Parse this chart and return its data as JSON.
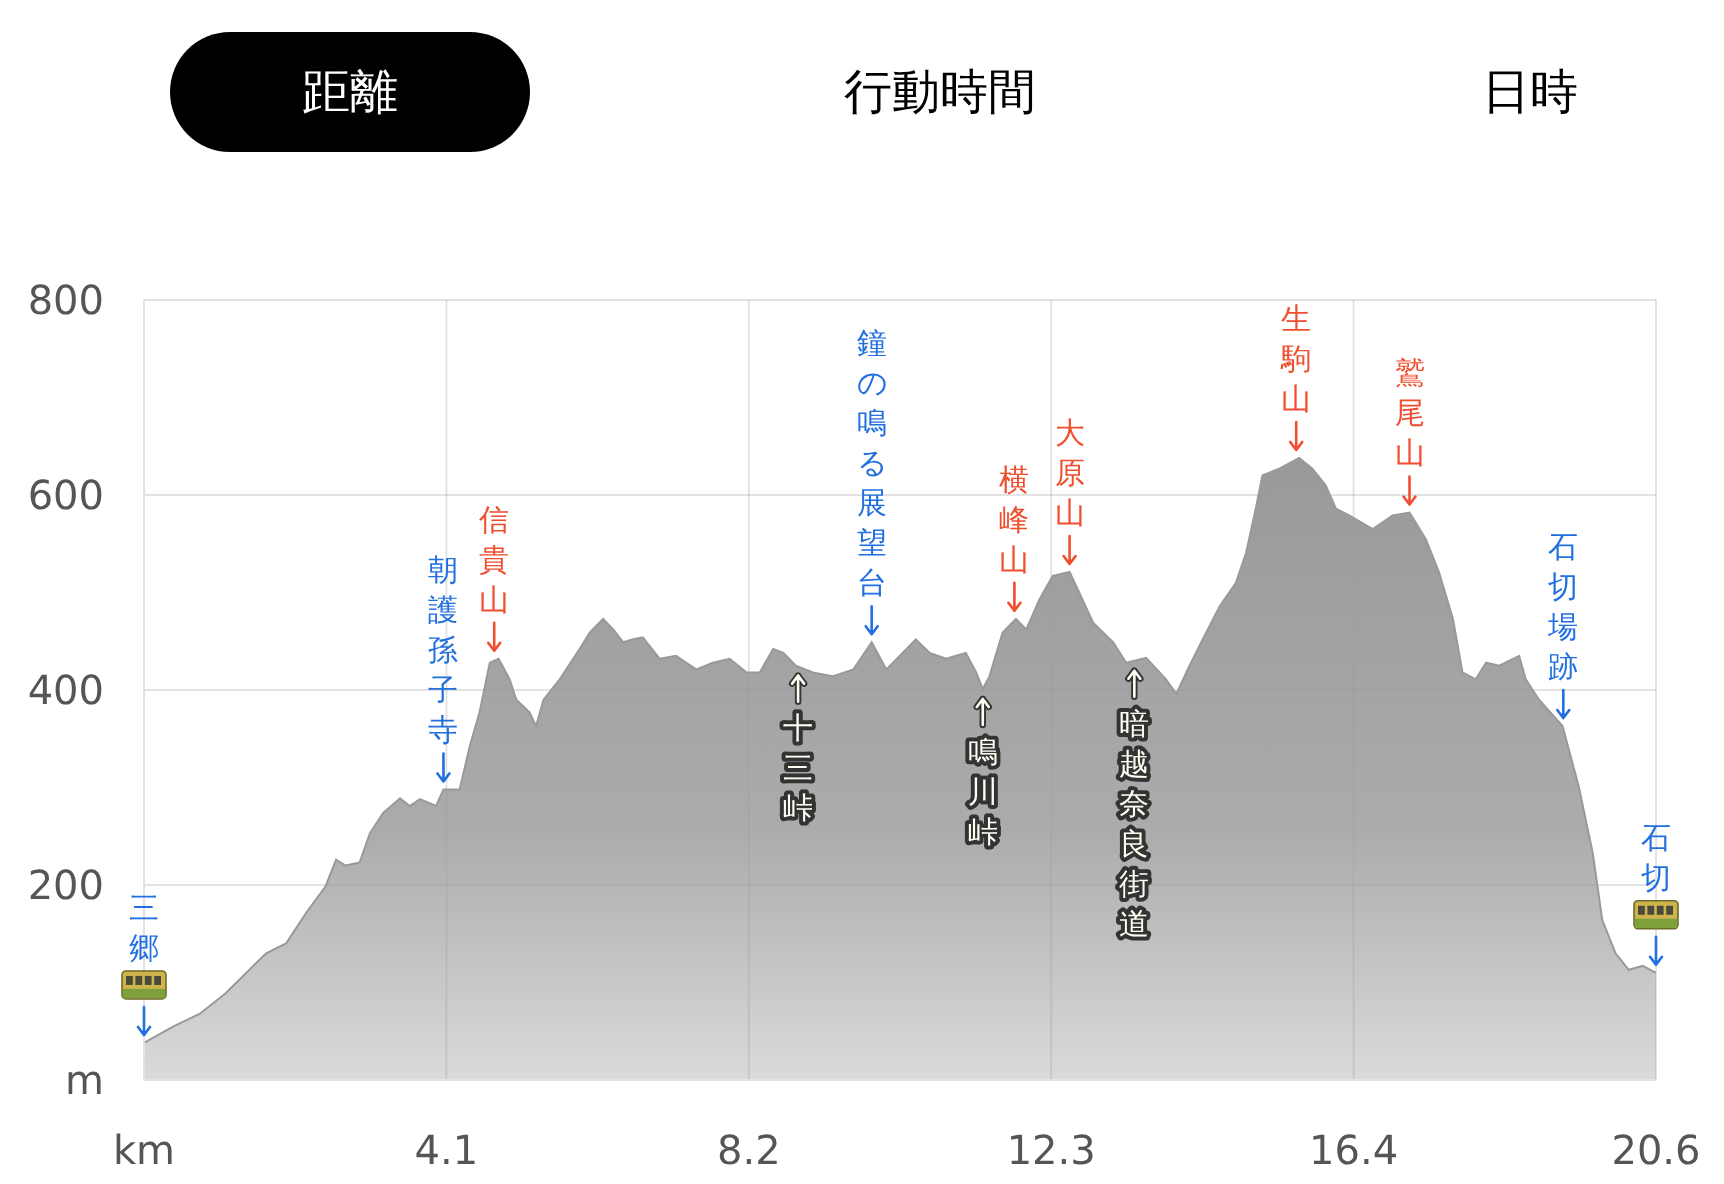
{
  "chart_data": [
    {
      "type": "other",
      "annotations": [
        "距離",
        "行動時間",
        "日時"
      ]
    },
    {
      "type": "area",
      "color": "#999999",
      "x": [
        0,
        0.4,
        0.76,
        1.11,
        1.35,
        1.66,
        1.93,
        2.2,
        2.47,
        2.61,
        2.74,
        2.93,
        3.07,
        3.25,
        3.48,
        3.61,
        3.75,
        3.97,
        4.07,
        4.29,
        4.43,
        4.56,
        4.7,
        4.82,
        4.97,
        5.06,
        5.24,
        5.33,
        5.43,
        5.65,
        5.92,
        6.06,
        6.24,
        6.38,
        6.51,
        6.65,
        6.78,
        7.01,
        7.23,
        7.51,
        7.73,
        7.96,
        8.19,
        8.37,
        8.55,
        8.69,
        8.86,
        9.09,
        9.36,
        9.64,
        9.89,
        10.09,
        10.27,
        10.49,
        10.68,
        10.9,
        11.17,
        11.31,
        11.4,
        11.49,
        11.67,
        11.85,
        11.99,
        12.17,
        12.35,
        12.58,
        12.71,
        12.9,
        13.17,
        13.35,
        13.62,
        13.89,
        14.03,
        14.21,
        14.39,
        14.62,
        14.84,
        14.98,
        15.11,
        15.2,
        15.43,
        15.7,
        15.88,
        16.06,
        16.2,
        16.38,
        16.7,
        16.97,
        17.2,
        17.42,
        17.6,
        17.79,
        17.92,
        18.1,
        18.24,
        18.42,
        18.69,
        18.78,
        18.96,
        19.28,
        19.5,
        19.69,
        19.82,
        20.0,
        20.18,
        20.37,
        20.55
      ],
      "values": [
        38,
        55,
        68,
        89,
        107,
        130,
        140,
        171,
        199,
        226,
        220,
        223,
        253,
        274,
        289,
        281,
        288,
        281,
        298,
        298,
        343,
        377,
        428,
        432,
        411,
        390,
        377,
        363,
        390,
        411,
        442,
        459,
        473,
        462,
        449,
        452,
        454,
        432,
        435,
        421,
        428,
        432,
        418,
        418,
        442,
        438,
        425,
        418,
        414,
        421,
        449,
        421,
        435,
        452,
        438,
        432,
        438,
        418,
        401,
        414,
        459,
        473,
        462,
        493,
        517,
        521,
        500,
        469,
        449,
        428,
        433,
        411,
        396,
        425,
        452,
        486,
        510,
        541,
        586,
        620,
        627,
        638,
        627,
        610,
        586,
        579,
        565,
        579,
        582,
        555,
        521,
        473,
        418,
        411,
        428,
        425,
        435,
        411,
        390,
        363,
        301,
        233,
        164,
        130,
        113,
        117,
        110
      ],
      "xlim": [
        0,
        20.55
      ],
      "xticks": [
        {
          "value": 0,
          "label": "km"
        },
        {
          "value": 4.11,
          "label": "4.1"
        },
        {
          "value": 8.22,
          "label": "8.2"
        },
        {
          "value": 12.33,
          "label": "12.3"
        },
        {
          "value": 16.44,
          "label": "16.4"
        },
        {
          "value": 20.55,
          "label": "20.6"
        }
      ],
      "ylim": [
        0,
        800
      ],
      "yticks": [
        {
          "value": 0,
          "label": "m"
        },
        200,
        400,
        600,
        800
      ],
      "grid": true,
      "annotations": [
        {
          "text": "三郷",
          "x": 0,
          "y": 38
        },
        {
          "text": "朝護孫子寺",
          "x": 4.07,
          "y": 298
        },
        {
          "text": "信貴山",
          "x": 4.76,
          "y": 432
        },
        {
          "text": "十三峠",
          "x": 8.89,
          "y": 425
        },
        {
          "text": "鐘の鳴る展望台",
          "x": 9.89,
          "y": 449
        },
        {
          "text": "鳴川峠",
          "x": 11.4,
          "y": 401
        },
        {
          "text": "横峰山",
          "x": 11.83,
          "y": 473
        },
        {
          "text": "大原山",
          "x": 12.58,
          "y": 521
        },
        {
          "text": "暗越奈良街道",
          "x": 13.46,
          "y": 430
        },
        {
          "text": "生駒山",
          "x": 15.66,
          "y": 638
        },
        {
          "text": "鷲尾山",
          "x": 17.2,
          "y": 582
        },
        {
          "text": "石切場跡",
          "x": 19.29,
          "y": 363
        },
        {
          "text": "石切",
          "x": 20.55,
          "y": 110
        }
      ]
    }
  ]
}
